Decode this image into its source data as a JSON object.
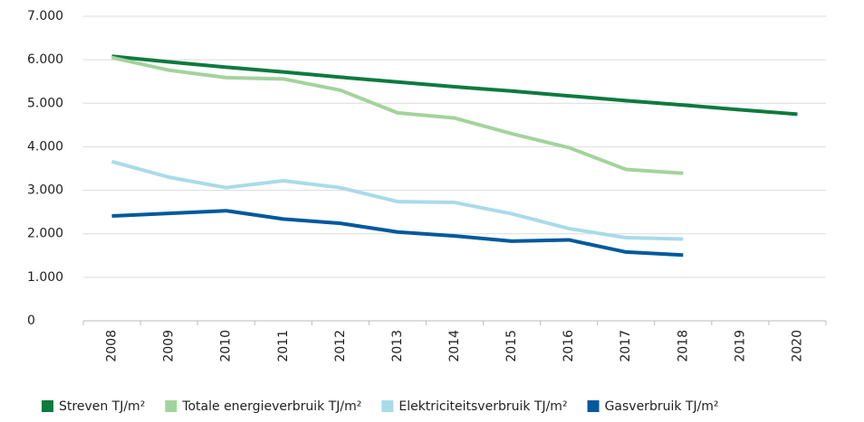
{
  "chart_data": {
    "type": "line",
    "categories": [
      "2008",
      "2009",
      "2010",
      "2011",
      "2012",
      "2013",
      "2014",
      "2015",
      "2016",
      "2017",
      "2018",
      "2019",
      "2020"
    ],
    "series": [
      {
        "name": "Streven TJ/m²",
        "color": "#0d7a3e",
        "values": [
          6080,
          5950,
          5830,
          5720,
          5600,
          5490,
          5380,
          5280,
          5170,
          5060,
          4960,
          4850,
          4750
        ]
      },
      {
        "name": "Totale energieverbruik TJ/m²",
        "color": "#a3d39c",
        "values": [
          6050,
          5760,
          5590,
          5560,
          5300,
          4780,
          4660,
          4300,
          3980,
          3480,
          3390,
          null,
          null
        ]
      },
      {
        "name": "Elektriciteitsverbruik TJ/m²",
        "color": "#a8dbe9",
        "values": [
          3660,
          3300,
          3060,
          3220,
          3060,
          2740,
          2720,
          2460,
          2120,
          1910,
          1880,
          null,
          null
        ]
      },
      {
        "name": "Gasverbruik TJ/m²",
        "color": "#00599c",
        "values": [
          2410,
          2470,
          2530,
          2340,
          2240,
          2040,
          1950,
          1830,
          1860,
          1580,
          1510,
          null,
          null
        ]
      }
    ],
    "ylim": [
      0,
      7000
    ],
    "yticks": [
      0,
      {
        "value": 1000,
        "label": "1.000"
      },
      {
        "value": 2000,
        "label": "2.000"
      },
      {
        "value": 3000,
        "label": "3.000"
      },
      {
        "value": 4000,
        "label": "4.000"
      },
      {
        "value": 5000,
        "label": "5.000"
      },
      {
        "value": 6000,
        "label": "6.000"
      },
      {
        "value": 7000,
        "label": "7.000"
      }
    ],
    "grid": true,
    "legend": "bottom"
  }
}
